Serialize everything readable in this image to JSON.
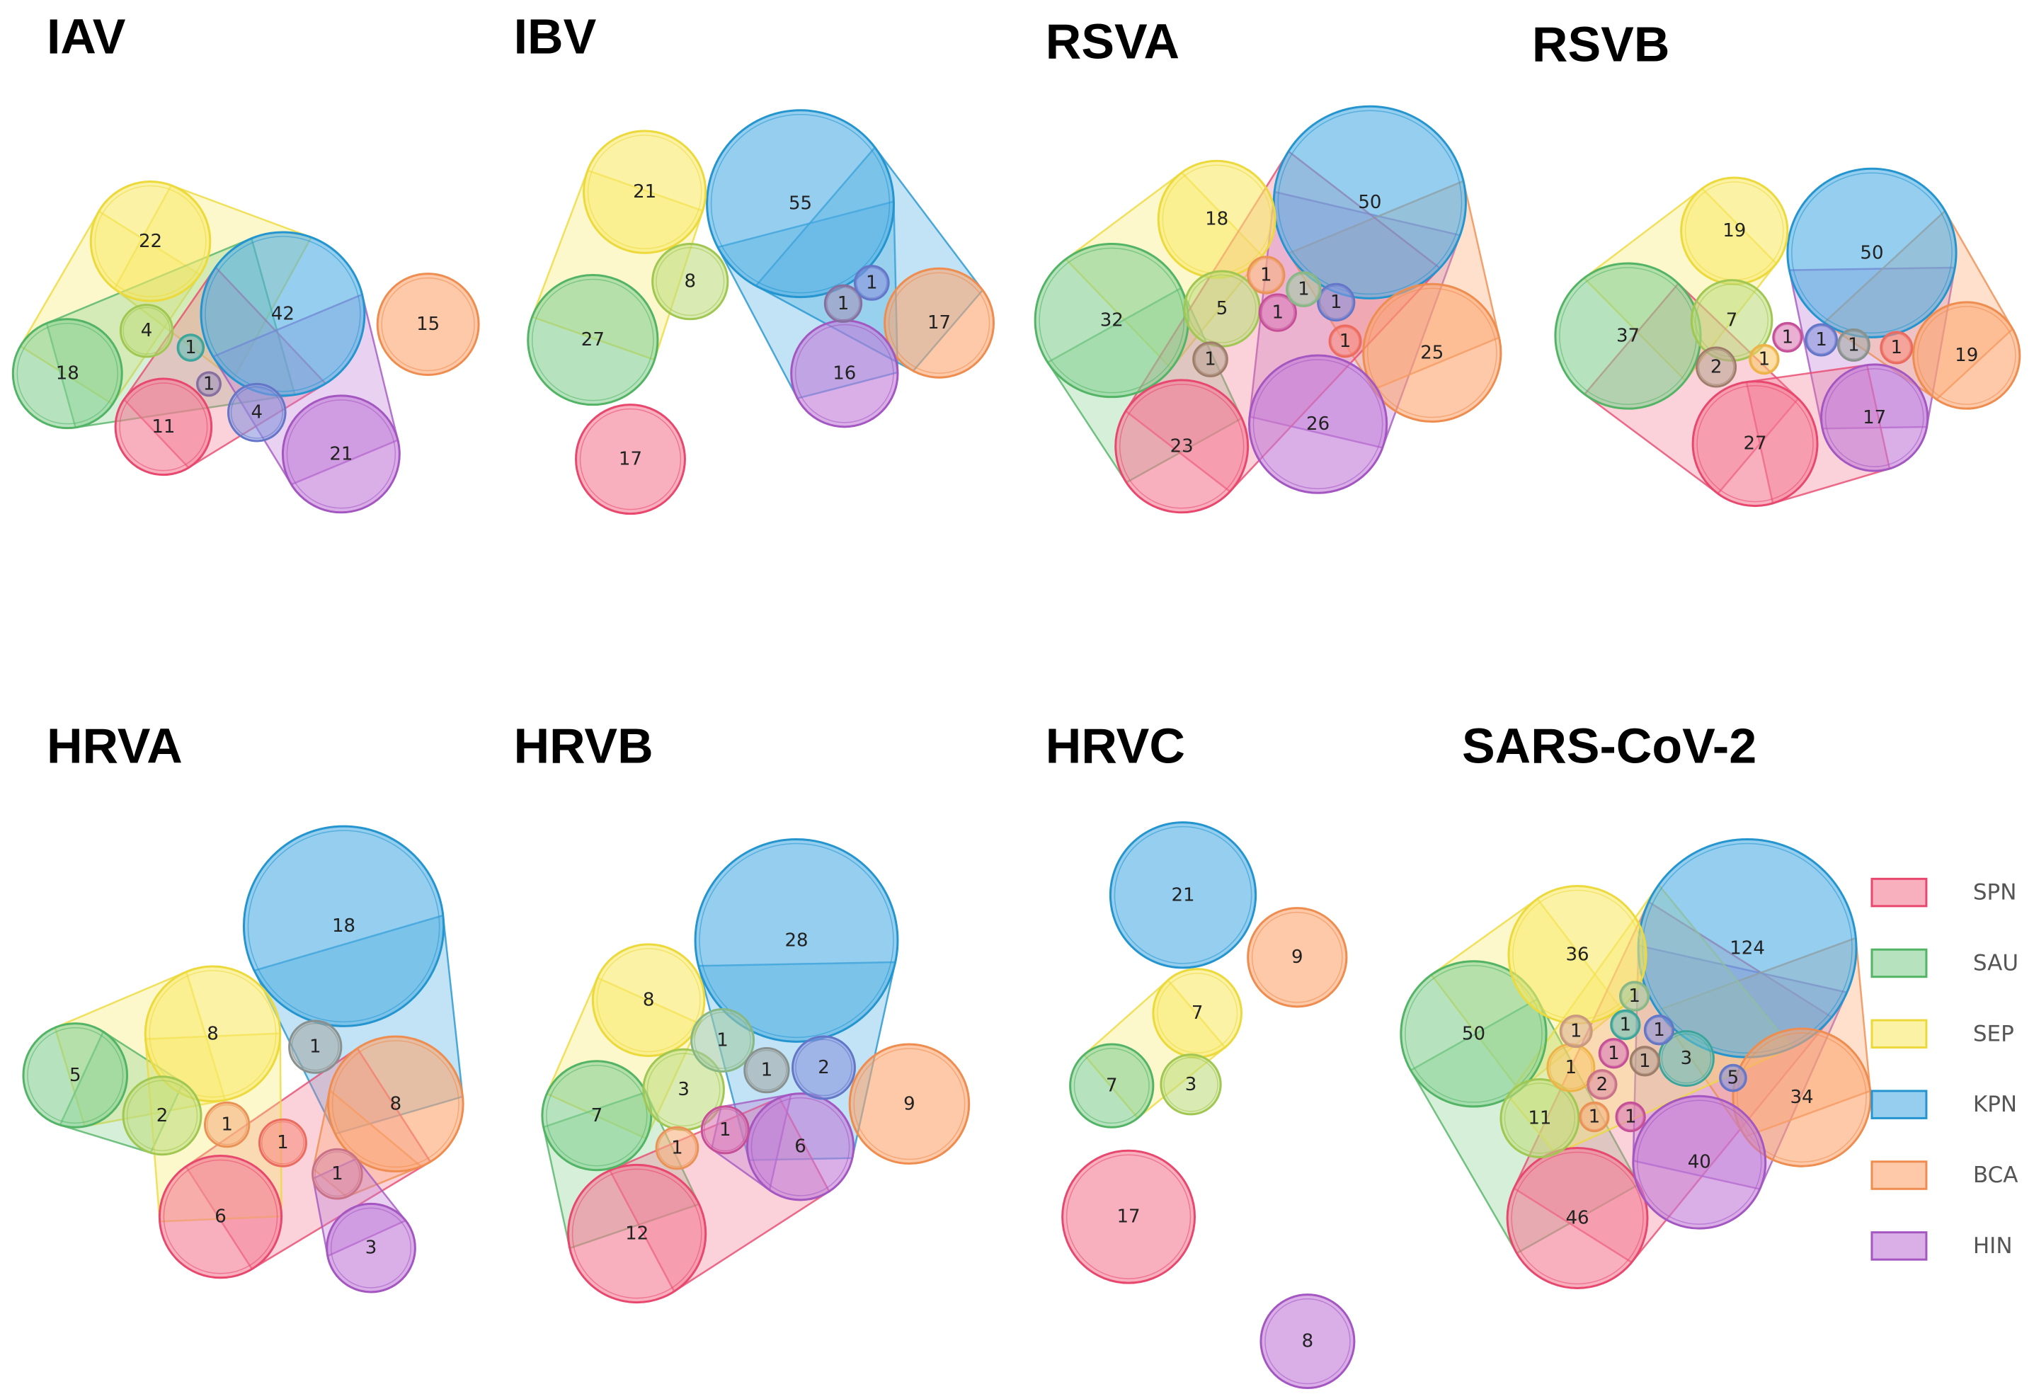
{
  "colors": {
    "SPN": {
      "fill": "#f47b95",
      "stroke": "#e8486e"
    },
    "SAU": {
      "fill": "#86d092",
      "stroke": "#53b466"
    },
    "SEP": {
      "fill": "#f8ea6a",
      "stroke": "#ecd93c"
    },
    "KPN": {
      "fill": "#4eaee2",
      "stroke": "#2495cf"
    },
    "BCA": {
      "fill": "#fba56f",
      "stroke": "#ee8d4f"
    },
    "HIN": {
      "fill": "#c17ad8",
      "stroke": "#a457c1"
    },
    "multi": {
      "fill": "#8a7ab0",
      "stroke": "#6f5f97"
    }
  },
  "legend": [
    {
      "key": "SPN",
      "label": "SPN"
    },
    {
      "key": "SAU",
      "label": "SAU"
    },
    {
      "key": "SEP",
      "label": "SEP"
    },
    {
      "key": "KPN",
      "label": "KPN"
    },
    {
      "key": "BCA",
      "label": "BCA"
    },
    {
      "key": "HIN",
      "label": "HIN"
    }
  ],
  "chart_data": [
    {
      "type": "upset-venn-bubbles",
      "title": "IAV",
      "sets": [
        {
          "sets": [
            "SEP"
          ],
          "value": 22
        },
        {
          "sets": [
            "KPN"
          ],
          "value": 42
        },
        {
          "sets": [
            "BCA"
          ],
          "value": 15
        },
        {
          "sets": [
            "SAU"
          ],
          "value": 18
        },
        {
          "sets": [
            "SAU",
            "SEP"
          ],
          "value": 4
        },
        {
          "sets": [
            "SAU",
            "KPN"
          ],
          "value": 1
        },
        {
          "sets": [
            "SPN",
            "KPN"
          ],
          "value": 1
        },
        {
          "sets": [
            "SPN"
          ],
          "value": 11
        },
        {
          "sets": [
            "KPN",
            "HIN"
          ],
          "value": 4
        },
        {
          "sets": [
            "HIN"
          ],
          "value": 21
        }
      ]
    },
    {
      "type": "upset-venn-bubbles",
      "title": "IBV",
      "sets": [
        {
          "sets": [
            "SEP"
          ],
          "value": 21
        },
        {
          "sets": [
            "KPN"
          ],
          "value": 55
        },
        {
          "sets": [
            "SAU",
            "SEP"
          ],
          "value": 8
        },
        {
          "sets": [
            "SAU"
          ],
          "value": 27
        },
        {
          "sets": [
            "KPN",
            "HIN"
          ],
          "value": 1
        },
        {
          "sets": [
            "SPN",
            "KPN",
            "HIN"
          ],
          "value": 1
        },
        {
          "sets": [
            "BCA"
          ],
          "value": 17
        },
        {
          "sets": [
            "HIN"
          ],
          "value": 16
        },
        {
          "sets": [
            "SPN"
          ],
          "value": 17
        }
      ]
    },
    {
      "type": "upset-venn-bubbles",
      "title": "RSVA",
      "sets": [
        {
          "sets": [
            "SEP"
          ],
          "value": 18
        },
        {
          "sets": [
            "KPN"
          ],
          "value": 50
        },
        {
          "sets": [
            "SAU"
          ],
          "value": 32
        },
        {
          "sets": [
            "SAU",
            "SEP"
          ],
          "value": 5
        },
        {
          "sets": [
            "SPN",
            "SEP"
          ],
          "value": 1
        },
        {
          "sets": [
            "KPN",
            "SEP"
          ],
          "value": 1
        },
        {
          "sets": [
            "SPN",
            "HIN",
            "KPN"
          ],
          "value": 1
        },
        {
          "sets": [
            "KPN",
            "HIN"
          ],
          "value": 1
        },
        {
          "sets": [
            "SPN",
            "BCA"
          ],
          "value": 1
        },
        {
          "sets": [
            "SAU",
            "SPN"
          ],
          "value": 1
        },
        {
          "sets": [
            "BCA"
          ],
          "value": 25
        },
        {
          "sets": [
            "SPN"
          ],
          "value": 23
        },
        {
          "sets": [
            "HIN"
          ],
          "value": 26
        }
      ]
    },
    {
      "type": "upset-venn-bubbles",
      "title": "RSVB",
      "sets": [
        {
          "sets": [
            "SEP"
          ],
          "value": 19
        },
        {
          "sets": [
            "KPN"
          ],
          "value": 50
        },
        {
          "sets": [
            "SAU"
          ],
          "value": 37
        },
        {
          "sets": [
            "SAU",
            "SEP"
          ],
          "value": 7
        },
        {
          "sets": [
            "SAU",
            "SPN"
          ],
          "value": 2
        },
        {
          "sets": [
            "SEP",
            "BCA"
          ],
          "value": 1
        },
        {
          "sets": [
            "SPN",
            "HIN"
          ],
          "value": 1
        },
        {
          "sets": [
            "KPN",
            "HIN"
          ],
          "value": 1
        },
        {
          "sets": [
            "KPN",
            "BCA"
          ],
          "value": 1
        },
        {
          "sets": [
            "SPN",
            "BCA"
          ],
          "value": 1
        },
        {
          "sets": [
            "BCA"
          ],
          "value": 19
        },
        {
          "sets": [
            "SPN"
          ],
          "value": 27
        },
        {
          "sets": [
            "HIN"
          ],
          "value": 17
        }
      ]
    },
    {
      "type": "upset-venn-bubbles",
      "title": "HRVA",
      "sets": [
        {
          "sets": [
            "KPN"
          ],
          "value": 18
        },
        {
          "sets": [
            "SEP"
          ],
          "value": 8
        },
        {
          "sets": [
            "SAU"
          ],
          "value": 5
        },
        {
          "sets": [
            "KPN",
            "BCA"
          ],
          "value": 1
        },
        {
          "sets": [
            "BCA"
          ],
          "value": 8
        },
        {
          "sets": [
            "SAU",
            "SEP"
          ],
          "value": 2
        },
        {
          "sets": [
            "SEP",
            "SPN"
          ],
          "value": 1
        },
        {
          "sets": [
            "SPN",
            "BCA"
          ],
          "value": 1
        },
        {
          "sets": [
            "BCA",
            "HIN"
          ],
          "value": 1
        },
        {
          "sets": [
            "SPN"
          ],
          "value": 6
        },
        {
          "sets": [
            "HIN"
          ],
          "value": 3
        }
      ]
    },
    {
      "type": "upset-venn-bubbles",
      "title": "HRVB",
      "sets": [
        {
          "sets": [
            "KPN"
          ],
          "value": 28
        },
        {
          "sets": [
            "SEP"
          ],
          "value": 8
        },
        {
          "sets": [
            "SEP",
            "KPN"
          ],
          "value": 1
        },
        {
          "sets": [
            "KPN",
            "BCA"
          ],
          "value": 1
        },
        {
          "sets": [
            "KPN",
            "HIN"
          ],
          "value": 2
        },
        {
          "sets": [
            "BCA"
          ],
          "value": 9
        },
        {
          "sets": [
            "SAU"
          ],
          "value": 7
        },
        {
          "sets": [
            "SAU",
            "SEP"
          ],
          "value": 3
        },
        {
          "sets": [
            "SPN",
            "SEP"
          ],
          "value": 1
        },
        {
          "sets": [
            "SPN",
            "HIN"
          ],
          "value": 1
        },
        {
          "sets": [
            "HIN"
          ],
          "value": 6
        },
        {
          "sets": [
            "SPN"
          ],
          "value": 12
        }
      ]
    },
    {
      "type": "upset-venn-bubbles",
      "title": "HRVC",
      "sets": [
        {
          "sets": [
            "KPN"
          ],
          "value": 21
        },
        {
          "sets": [
            "BCA"
          ],
          "value": 9
        },
        {
          "sets": [
            "SEP"
          ],
          "value": 7
        },
        {
          "sets": [
            "SAU"
          ],
          "value": 7
        },
        {
          "sets": [
            "SAU",
            "SEP"
          ],
          "value": 3
        },
        {
          "sets": [
            "SPN"
          ],
          "value": 17
        },
        {
          "sets": [
            "HIN"
          ],
          "value": 8
        }
      ]
    },
    {
      "type": "upset-venn-bubbles",
      "title": "SARS-CoV-2",
      "sets": [
        {
          "sets": [
            "SEP"
          ],
          "value": 36
        },
        {
          "sets": [
            "KPN"
          ],
          "value": 124
        },
        {
          "sets": [
            "SAU"
          ],
          "value": 50
        },
        {
          "sets": [
            "SEP",
            "KPN"
          ],
          "value": 1
        },
        {
          "sets": [
            "SEP",
            "HIN"
          ],
          "value": 1
        },
        {
          "sets": [
            "SAU",
            "KPN"
          ],
          "value": 1
        },
        {
          "sets": [
            "KPN",
            "HIN"
          ],
          "value": 1
        },
        {
          "sets": [
            "SPN",
            "HIN"
          ],
          "value": 1
        },
        {
          "sets": [
            "SAU",
            "SPN"
          ],
          "value": 1
        },
        {
          "sets": [
            "SEP",
            "BCA"
          ],
          "value": 1
        },
        {
          "sets": [
            "SAU",
            "KPN",
            "SEP"
          ],
          "value": 3
        },
        {
          "sets": [
            "KPN",
            "HIN",
            "BCA"
          ],
          "value": 5
        },
        {
          "sets": [
            "HIN",
            "BCA"
          ],
          "value": 2
        },
        {
          "sets": [
            "BCA"
          ],
          "value": 34
        },
        {
          "sets": [
            "SAU",
            "SEP",
            "SPN"
          ],
          "value": 11
        },
        {
          "sets": [
            "SEP",
            "SPN"
          ],
          "value": 1
        },
        {
          "sets": [
            "SPN",
            "HIN",
            "BCA"
          ],
          "value": 1
        },
        {
          "sets": [
            "HIN"
          ],
          "value": 40
        },
        {
          "sets": [
            "SPN"
          ],
          "value": 46
        }
      ]
    }
  ]
}
